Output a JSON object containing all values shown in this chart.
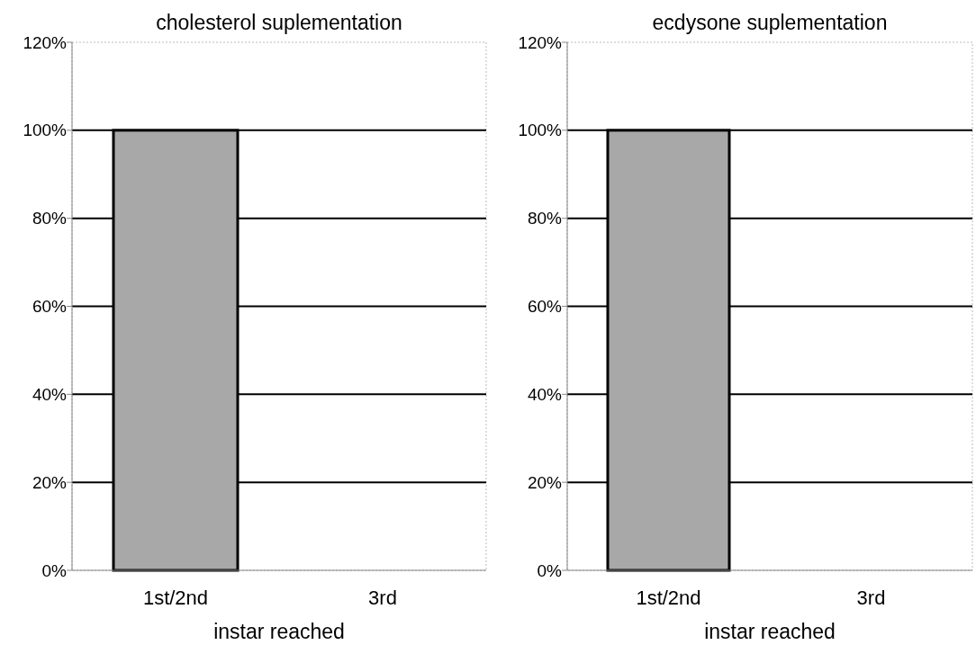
{
  "chart_data": [
    {
      "type": "bar",
      "title": "cholesterol suplementation",
      "xlabel": "instar reached",
      "categories": [
        "1st/2nd",
        "3rd"
      ],
      "values": [
        100,
        0
      ],
      "color": "#a8a8a8",
      "ylim": [
        0,
        120
      ],
      "yticks": [
        {
          "value": 0,
          "label": "0%"
        },
        {
          "value": 20,
          "label": "20%"
        },
        {
          "value": 40,
          "label": "40%"
        },
        {
          "value": 60,
          "label": "60%"
        },
        {
          "value": 80,
          "label": "80%"
        },
        {
          "value": 100,
          "label": "100%"
        },
        {
          "value": 120,
          "label": "120%"
        }
      ],
      "grid": "y"
    },
    {
      "type": "bar",
      "title": "ecdysone suplementation",
      "xlabel": "instar reached",
      "categories": [
        "1st/2nd",
        "3rd"
      ],
      "values": [
        100,
        0
      ],
      "color": "#a8a8a8",
      "ylim": [
        0,
        120
      ],
      "yticks": [
        {
          "value": 0,
          "label": "0%"
        },
        {
          "value": 20,
          "label": "20%"
        },
        {
          "value": 40,
          "label": "40%"
        },
        {
          "value": 60,
          "label": "60%"
        },
        {
          "value": 80,
          "label": "80%"
        },
        {
          "value": 100,
          "label": "100%"
        },
        {
          "value": 120,
          "label": "120%"
        }
      ],
      "grid": "y"
    }
  ]
}
